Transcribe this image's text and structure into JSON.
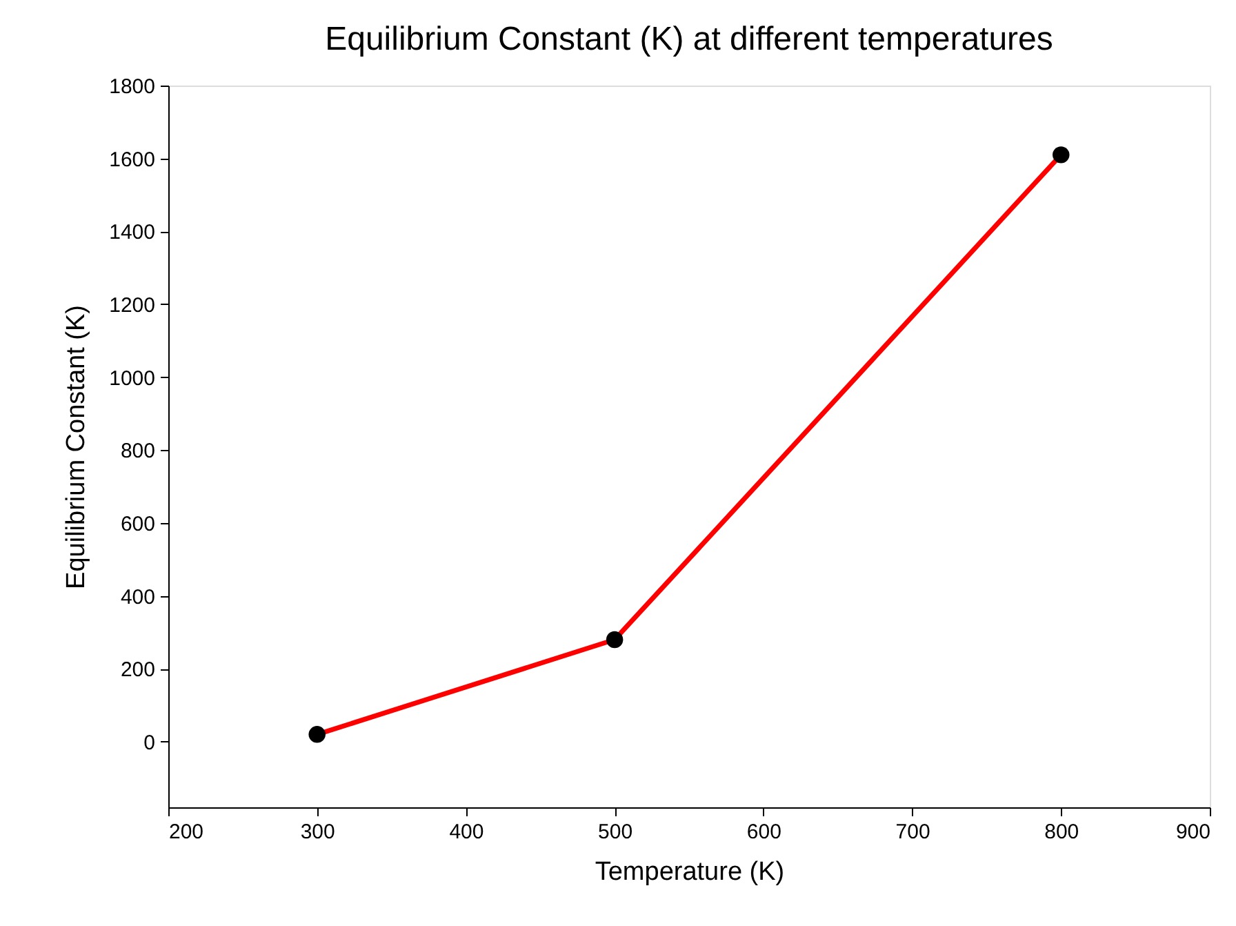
{
  "chart_data": {
    "type": "line",
    "title": "Equilibrium Constant (K) at different temperatures",
    "xlabel": "Temperature (K)",
    "ylabel": "Equilibrium Constant (K)",
    "x": [
      300,
      500,
      800
    ],
    "series": [
      {
        "color": "#ff0000",
        "values": [
          20,
          280,
          1610
        ]
      }
    ],
    "xlim": [
      200,
      900
    ],
    "xticks": [
      200,
      300,
      400,
      500,
      600,
      700,
      800,
      900
    ],
    "ylim": [
      -180,
      1800
    ],
    "yticks": [
      0,
      200,
      400,
      600,
      800,
      1000,
      1200,
      1400,
      1600,
      1800
    ],
    "marker": "circle",
    "line_style": "solid"
  }
}
